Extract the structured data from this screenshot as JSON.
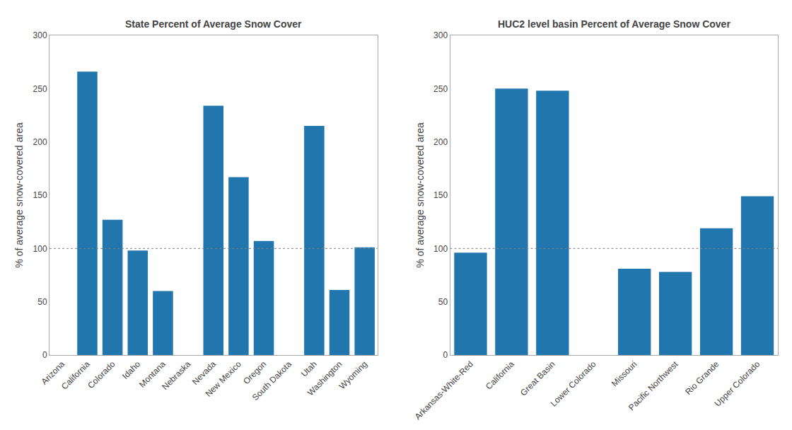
{
  "chart_data": [
    {
      "type": "bar",
      "title": "State Percent of Average Snow Cover",
      "ylabel": "% of average snow-covered area",
      "categories": [
        "Arizona",
        "California",
        "Colorado",
        "Idaho",
        "Montana",
        "Nebraska",
        "Nevada",
        "New Mexico",
        "Oregon",
        "South Dakota",
        "Utah",
        "Washington",
        "Wyoming"
      ],
      "values": [
        0,
        266,
        127,
        98,
        60,
        0,
        234,
        167,
        107,
        0,
        215,
        61,
        101
      ],
      "color": "#2176AE",
      "ylim": [
        0,
        300
      ],
      "yticks": [
        0,
        50,
        100,
        150,
        200,
        250,
        300
      ],
      "grid": false,
      "reference_line": {
        "y": 100,
        "color": "#808080",
        "line_style": "dotted"
      }
    },
    {
      "type": "bar",
      "title": "HUC2 level basin Percent of Average Snow Cover",
      "ylabel": "% of average snow-covered area",
      "categories": [
        "Arkansas-White-Red",
        "California",
        "Great Basin",
        "Lower Colorado",
        "Missouri",
        "Pacific Northwest",
        "Rio Grande",
        "Upper Colorado"
      ],
      "values": [
        96,
        250,
        248,
        0,
        81,
        78,
        119,
        149
      ],
      "color": "#2176AE",
      "ylim": [
        0,
        300
      ],
      "yticks": [
        0,
        50,
        100,
        150,
        200,
        250,
        300
      ],
      "grid": false,
      "reference_line": {
        "y": 100,
        "color": "#808080",
        "line_style": "dotted"
      }
    }
  ]
}
